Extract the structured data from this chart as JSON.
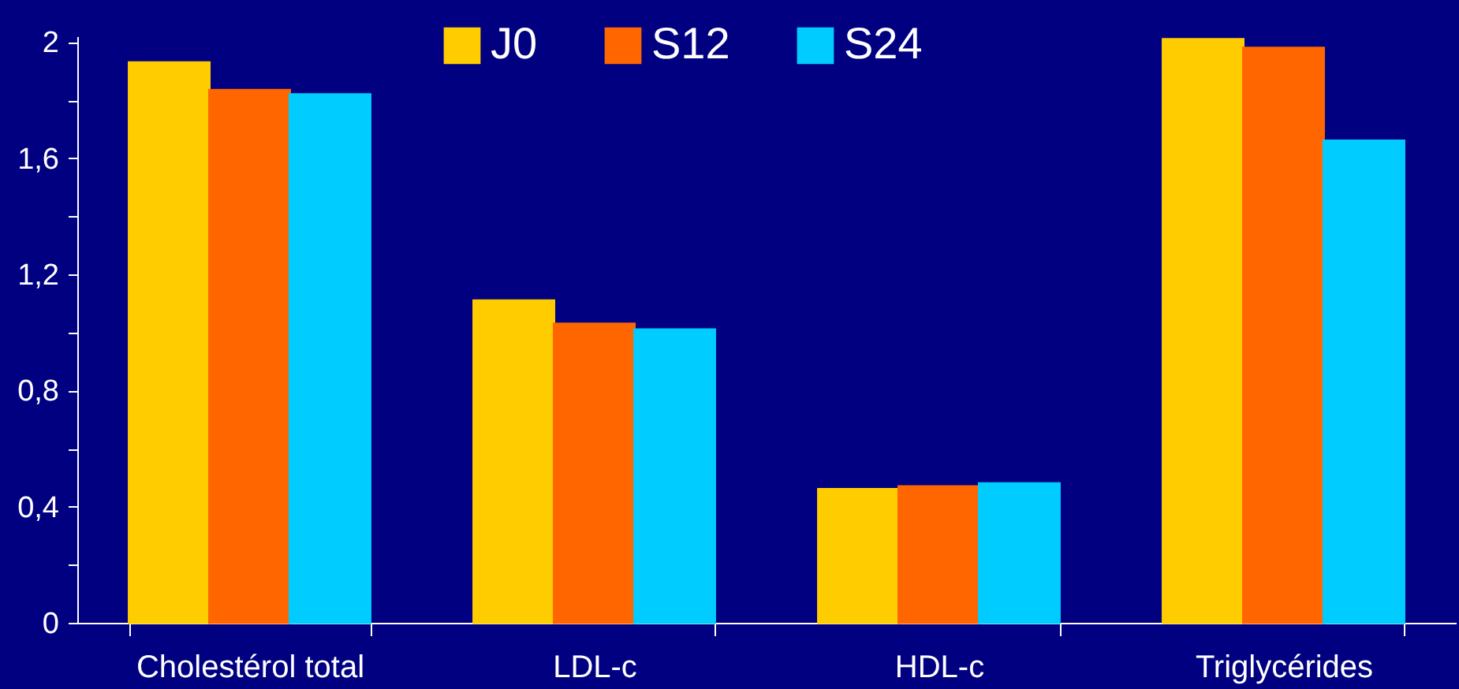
{
  "chart_data": {
    "type": "bar",
    "categories": [
      "Cholestérol total",
      "LDL-c",
      "HDL-c",
      "Triglycérides"
    ],
    "series": [
      {
        "name": "J0",
        "color": "#ffcc00",
        "values": [
          1.93,
          1.11,
          0.46,
          2.01
        ]
      },
      {
        "name": "S12",
        "color": "#ff6600",
        "values": [
          1.835,
          1.03,
          0.47,
          1.98
        ]
      },
      {
        "name": "S24",
        "color": "#00ccff",
        "values": [
          1.82,
          1.01,
          0.48,
          1.66
        ]
      }
    ],
    "ylim": [
      0,
      2.02
    ],
    "yticks": [
      0,
      {
        "value": 0.2,
        "label": null
      },
      {
        "value": 0.4,
        "label": "0,4"
      },
      {
        "value": 0.6,
        "label": null
      },
      {
        "value": 0.8,
        "label": "0,8"
      },
      {
        "value": 1,
        "label": null
      },
      {
        "value": 1.2,
        "label": "1,2"
      },
      {
        "value": 1.4,
        "label": null
      },
      {
        "value": 1.6,
        "label": "1,6"
      },
      {
        "value": 1.8,
        "label": null
      },
      2
    ],
    "grid": false,
    "legend": "top"
  }
}
